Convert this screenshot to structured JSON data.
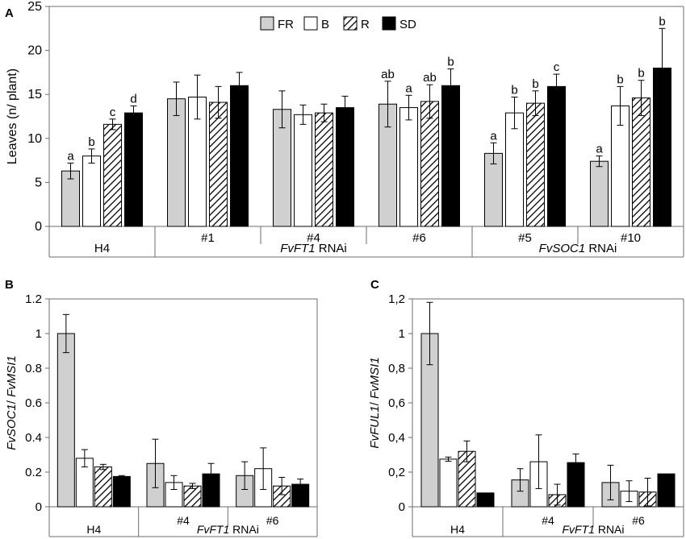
{
  "legend": [
    {
      "key": "FR",
      "label": "FR",
      "fill": "#d0d0d0",
      "hatch": false
    },
    {
      "key": "B",
      "label": "B",
      "fill": "#ffffff",
      "hatch": false
    },
    {
      "key": "R",
      "label": "R",
      "fill": "#ffffff",
      "hatch": true
    },
    {
      "key": "SD",
      "label": "SD",
      "fill": "#000000",
      "hatch": false
    }
  ],
  "colors": {
    "FR": "#d0d0d0",
    "B": "#ffffff",
    "R": "#ffffff",
    "SD": "#000000",
    "stroke": "#000000",
    "axis": "#6e6e6e"
  },
  "chart_data": [
    {
      "panel": "A",
      "type": "bar",
      "ylabel": "Leaves (n/ plant)",
      "ylim": [
        0,
        25
      ],
      "yticks": [
        0,
        5,
        10,
        15,
        20,
        25
      ],
      "ytick_labels": [
        "0",
        "5",
        "10",
        "15",
        "20",
        "25"
      ],
      "categories": [
        "H4",
        "#1",
        "#4",
        "#6",
        "#5",
        "#10"
      ],
      "groups": [
        {
          "label": "H4",
          "text_label": "H4",
          "span": [
            0,
            1
          ]
        },
        {
          "label": "FvFT1 RNAi",
          "italic": "FvFT1",
          "plain": " RNAi",
          "span": [
            1,
            4
          ]
        },
        {
          "label": "FvSOC1 RNAi",
          "italic": "FvSOC1",
          "plain": " RNAi",
          "span": [
            4,
            6
          ]
        }
      ],
      "series": [
        {
          "name": "FR",
          "values": [
            6.3,
            14.5,
            13.3,
            13.9,
            8.3,
            7.4
          ],
          "errors": [
            0.9,
            1.9,
            2.1,
            2.6,
            1.2,
            0.6
          ],
          "letters": [
            "a",
            "",
            "",
            "ab",
            "a",
            "a"
          ]
        },
        {
          "name": "B",
          "values": [
            8.0,
            14.7,
            12.7,
            13.5,
            12.9,
            13.7
          ],
          "errors": [
            0.8,
            2.5,
            1.1,
            1.4,
            1.8,
            2.2
          ],
          "letters": [
            "b",
            "",
            "",
            "a",
            "b",
            "b"
          ]
        },
        {
          "name": "R",
          "values": [
            11.6,
            14.1,
            12.9,
            14.2,
            14.0,
            14.6
          ],
          "errors": [
            0.6,
            1.8,
            1.0,
            1.9,
            1.4,
            2.0
          ],
          "letters": [
            "c",
            "",
            "",
            "ab",
            "b",
            "b"
          ]
        },
        {
          "name": "SD",
          "values": [
            12.9,
            16.0,
            13.5,
            16.0,
            15.9,
            18.0
          ],
          "errors": [
            0.8,
            1.5,
            1.3,
            1.9,
            1.4,
            4.5
          ],
          "letters": [
            "d",
            "",
            "",
            "b",
            "c",
            "b"
          ]
        }
      ]
    },
    {
      "panel": "B",
      "type": "bar",
      "ylabel": "FvSOC1/ FvMSI1",
      "ylabel_italic_a": "FvSOC1",
      "ylabel_sep": "/ ",
      "ylabel_italic_b": "FvMSI1",
      "ylim": [
        0,
        1.2
      ],
      "yticks": [
        0,
        0.2,
        0.4,
        0.6,
        0.8,
        1.0,
        1.2
      ],
      "ytick_labels": [
        "0",
        "0.2",
        "0.4",
        "0.6",
        "0.8",
        "1",
        "1.2"
      ],
      "categories": [
        "H4",
        "#4",
        "#6"
      ],
      "groups": [
        {
          "label": "H4",
          "text_label": "H4",
          "span": [
            0,
            1
          ]
        },
        {
          "label": "FvFT1 RNAi",
          "italic": "FvFT1",
          "plain": " RNAi",
          "span": [
            1,
            3
          ]
        }
      ],
      "series": [
        {
          "name": "FR",
          "values": [
            1.0,
            0.25,
            0.18
          ],
          "errors": [
            0.11,
            0.14,
            0.08
          ]
        },
        {
          "name": "B",
          "values": [
            0.28,
            0.14,
            0.22
          ],
          "errors": [
            0.05,
            0.04,
            0.12
          ]
        },
        {
          "name": "R",
          "values": [
            0.23,
            0.12,
            0.12
          ],
          "errors": [
            0.015,
            0.015,
            0.05
          ]
        },
        {
          "name": "SD",
          "values": [
            0.175,
            0.19,
            0.13
          ],
          "errors": [
            0.005,
            0.06,
            0.03
          ]
        }
      ]
    },
    {
      "panel": "C",
      "type": "bar",
      "ylabel": "FvFUL1/ FvMSI1",
      "ylabel_italic_a": "FvFUL1",
      "ylabel_sep": "/ ",
      "ylabel_italic_b": "FvMSI1",
      "ylim": [
        0,
        1.2
      ],
      "yticks": [
        0,
        0.2,
        0.4,
        0.6,
        0.8,
        1.0,
        1.2
      ],
      "ytick_labels": [
        "0",
        "0,2",
        "0,4",
        "0,6",
        "0,8",
        "1",
        "1,2"
      ],
      "categories": [
        "H4",
        "#4",
        "#6"
      ],
      "groups": [
        {
          "label": "H4",
          "text_label": "H4",
          "span": [
            0,
            1
          ]
        },
        {
          "label": "FvFT1 RNAi",
          "italic": "FvFT1",
          "plain": " RNAi",
          "span": [
            1,
            3
          ]
        }
      ],
      "series": [
        {
          "name": "FR",
          "values": [
            1.0,
            0.155,
            0.14
          ],
          "errors": [
            0.18,
            0.065,
            0.1
          ]
        },
        {
          "name": "B",
          "values": [
            0.275,
            0.26,
            0.09
          ],
          "errors": [
            0.012,
            0.155,
            0.06
          ]
        },
        {
          "name": "R",
          "values": [
            0.32,
            0.07,
            0.085
          ],
          "errors": [
            0.06,
            0.06,
            0.08
          ]
        },
        {
          "name": "SD",
          "values": [
            0.08,
            0.255,
            0.19
          ],
          "errors": [
            0,
            0.05,
            0
          ]
        }
      ]
    }
  ]
}
